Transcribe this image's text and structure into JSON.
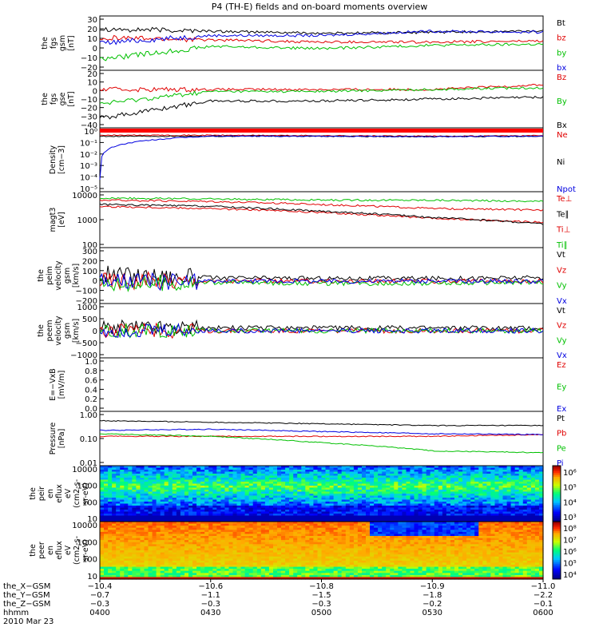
{
  "title": "P4 (TH-E) fields and on-board moments overview",
  "panels": [
    {
      "ylabel": [
        "the",
        "fgs",
        "gsm",
        "[nT]"
      ],
      "ticks": [
        "30",
        "20",
        "10",
        "0",
        "−10",
        "−20"
      ],
      "legend": [
        {
          "t": "Bt",
          "c": "#000000"
        },
        {
          "t": "bz",
          "c": "#e00000"
        },
        {
          "t": "by",
          "c": "#00c000"
        },
        {
          "t": "bx",
          "c": "#0000e0"
        }
      ]
    },
    {
      "ylabel": [
        "the",
        "fgs",
        "gse",
        "[nT]"
      ],
      "ticks": [
        "20",
        "10",
        "0",
        "−10",
        "−20",
        "−30",
        "−40"
      ],
      "legend": [
        {
          "t": "Bz",
          "c": "#e00000"
        },
        {
          "t": "By",
          "c": "#00c000"
        },
        {
          "t": "Bx",
          "c": "#000000"
        }
      ]
    },
    {
      "ylabel": [
        "Density",
        "[cm−3]"
      ],
      "ticks": [
        "10⁰",
        "10⁻¹",
        "10⁻²",
        "10⁻³",
        "10⁻⁴",
        "10⁻⁵"
      ],
      "legend": [
        {
          "t": "Ne",
          "c": "#e00000"
        },
        {
          "t": "Ni",
          "c": "#000000"
        },
        {
          "t": "Npot",
          "c": "#0000e0"
        }
      ]
    },
    {
      "ylabel": [
        "magt3",
        "[eV]"
      ],
      "ticks": [
        "10000",
        "1000",
        "100"
      ],
      "legend": [
        {
          "t": "Te⊥",
          "c": "#e00000"
        },
        {
          "t": "Te∥",
          "c": "#000000"
        },
        {
          "t": "Ti⊥",
          "c": "#e00000"
        },
        {
          "t": "Ti∥",
          "c": "#00c000"
        }
      ]
    },
    {
      "ylabel": [
        "the",
        "peim",
        "velocity",
        "gsm",
        "[km/s]"
      ],
      "ticks": [
        "300",
        "200",
        "100",
        "0",
        "−100",
        "−200"
      ],
      "legend": [
        {
          "t": "Vt",
          "c": "#000000"
        },
        {
          "t": "Vz",
          "c": "#e00000"
        },
        {
          "t": "Vy",
          "c": "#00c000"
        },
        {
          "t": "Vx",
          "c": "#0000e0"
        }
      ]
    },
    {
      "ylabel": [
        "the",
        "peem",
        "velocity",
        "gsm",
        "[km/s]"
      ],
      "ticks": [
        "1000",
        "500",
        "0",
        "−500",
        "−1000"
      ],
      "legend": [
        {
          "t": "Vt",
          "c": "#000000"
        },
        {
          "t": "Vz",
          "c": "#e00000"
        },
        {
          "t": "Vy",
          "c": "#00c000"
        },
        {
          "t": "Vx",
          "c": "#0000e0"
        }
      ]
    },
    {
      "ylabel": [
        "E=−VxB",
        "[mV/m]"
      ],
      "ticks": [
        "1.0",
        "0.8",
        "0.6",
        "0.4",
        "0.2",
        "0.0"
      ],
      "legend": [
        {
          "t": "Ez",
          "c": "#e00000"
        },
        {
          "t": "Ey",
          "c": "#00c000"
        },
        {
          "t": "Ex",
          "c": "#0000e0"
        }
      ]
    },
    {
      "ylabel": [
        "Pressure",
        "[nPa]"
      ],
      "ticks": [
        "1.00",
        "0.10",
        "0.01"
      ],
      "legend": [
        {
          "t": "Pt",
          "c": "#000000"
        },
        {
          "t": "Pb",
          "c": "#e00000"
        },
        {
          "t": "Pe",
          "c": "#00c000"
        },
        {
          "t": "Pi",
          "c": "#0000e0"
        }
      ]
    },
    {
      "ylabel": [
        "the",
        "peir",
        "en",
        "eflux",
        "eV",
        "(cm2-s-",
        "sr-eV)"
      ],
      "ticks": [
        "10000",
        "1000",
        "100",
        "10"
      ],
      "colorbar": [
        "10⁶",
        "10⁵",
        "10⁴",
        "10³"
      ]
    },
    {
      "ylabel": [
        "the",
        "peer",
        "en",
        "eflux",
        "eV",
        "(cm2-s-",
        "sr-eV)"
      ],
      "ticks": [
        "10000",
        "1000",
        "100",
        "10"
      ],
      "colorbar": [
        "10⁸",
        "10⁷",
        "10⁶",
        "10⁵",
        "10⁴"
      ]
    }
  ],
  "xaxis": {
    "row_labels": [
      "the_X−GSM",
      "the_Y−GSM",
      "the_Z−GSM",
      "hhmm",
      "2010 Mar 23"
    ],
    "columns": [
      [
        "−10.4",
        "−0.7",
        "−0.3",
        "0400"
      ],
      [
        "−10.6",
        "−1.1",
        "−0.3",
        "0430"
      ],
      [
        "−10.8",
        "−1.5",
        "−0.3",
        "0500"
      ],
      [
        "−10.9",
        "−1.8",
        "−0.2",
        "0530"
      ],
      [
        "−11.0",
        "−2.2",
        "−0.1",
        "0600"
      ]
    ]
  },
  "chart_data": {
    "type": "line",
    "title": "P4 (TH-E) fields and on-board moments overview",
    "x": [
      "0400",
      "0430",
      "0500",
      "0530",
      "0600"
    ],
    "x_secondary": {
      "the_X-GSM": [
        -10.4,
        -10.6,
        -10.8,
        -10.9,
        -11.0
      ],
      "the_Y-GSM": [
        -0.7,
        -1.1,
        -1.5,
        -1.8,
        -2.2
      ],
      "the_Z-GSM": [
        -0.3,
        -0.3,
        -0.3,
        -0.2,
        -0.1
      ]
    },
    "date": "2010 Mar 23",
    "panels": [
      {
        "ylabel": "the fgs gsm [nT]",
        "ylim": [
          -20,
          30
        ],
        "series": [
          {
            "name": "Bt",
            "values": [
              18,
              16,
              14,
              15,
              16
            ]
          },
          {
            "name": "bz",
            "values": [
              10,
              8,
              6,
              6,
              7
            ]
          },
          {
            "name": "by",
            "values": [
              -10,
              2,
              0,
              3,
              4
            ]
          },
          {
            "name": "bx",
            "values": [
              5,
              12,
              12,
              16,
              15
            ]
          }
        ]
      },
      {
        "ylabel": "the fgs gse [nT]",
        "ylim": [
          -40,
          20
        ],
        "series": [
          {
            "name": "Bz",
            "values": [
              0,
              0,
              0,
              0,
              5
            ]
          },
          {
            "name": "By",
            "values": [
              -15,
              -2,
              -2,
              0,
              2
            ]
          },
          {
            "name": "Bx",
            "values": [
              -30,
              -12,
              -12,
              -10,
              -8
            ]
          }
        ]
      },
      {
        "ylabel": "Density [cm-3]",
        "scale": "log",
        "ylim": [
          1e-05,
          1
        ],
        "series": [
          {
            "name": "Ne",
            "values": [
              0.6,
              0.6,
              0.55,
              0.5,
              0.55
            ]
          },
          {
            "name": "Ni",
            "values": [
              0.5,
              0.5,
              0.5,
              0.45,
              0.5
            ]
          },
          {
            "name": "Npot",
            "values": [
              0.0001,
              0.5,
              0.5,
              0.45,
              0.5
            ]
          }
        ]
      },
      {
        "ylabel": "magt3 [eV]",
        "scale": "log",
        "ylim": [
          100,
          10000
        ],
        "series": [
          {
            "name": "Te⊥",
            "values": [
              3000,
              2500,
              1800,
              1100,
              800
            ]
          },
          {
            "name": "Te∥",
            "values": [
              3500,
              3000,
              2000,
              1200,
              700
            ]
          },
          {
            "name": "Ti⊥",
            "values": [
              5000,
              4500,
              3500,
              2500,
              2200
            ]
          },
          {
            "name": "Ti∥",
            "values": [
              6000,
              5500,
              5000,
              5000,
              4500
            ]
          }
        ]
      },
      {
        "ylabel": "the peim velocity gsm [km/s]",
        "ylim": [
          -200,
          300
        ],
        "series": [
          {
            "name": "Vt",
            "values": [
              60,
              30,
              25,
              25,
              30
            ]
          },
          {
            "name": "Vz",
            "values": [
              10,
              0,
              0,
              0,
              0
            ]
          },
          {
            "name": "Vy",
            "values": [
              -20,
              -10,
              -20,
              -20,
              -10
            ]
          },
          {
            "name": "Vx",
            "values": [
              0,
              0,
              0,
              0,
              0
            ]
          }
        ]
      },
      {
        "ylabel": "the peem velocity gsm [km/s]",
        "ylim": [
          -1000,
          1000
        ],
        "series": [
          {
            "name": "Vt",
            "values": [
              150,
              100,
              100,
              100,
              100
            ]
          },
          {
            "name": "Vz",
            "values": [
              0,
              0,
              0,
              0,
              0
            ]
          },
          {
            "name": "Vy",
            "values": [
              0,
              0,
              0,
              0,
              0
            ]
          },
          {
            "name": "Vx",
            "values": [
              0,
              0,
              0,
              0,
              0
            ]
          }
        ]
      },
      {
        "ylabel": "E=-VxB [mV/m]",
        "ylim": [
          0,
          1
        ],
        "series": []
      },
      {
        "ylabel": "Pressure [nPa]",
        "scale": "log",
        "ylim": [
          0.01,
          1
        ],
        "series": [
          {
            "name": "Pt",
            "values": [
              0.45,
              0.4,
              0.35,
              0.3,
              0.3
            ]
          },
          {
            "name": "Pb",
            "values": [
              0.12,
              0.12,
              0.12,
              0.12,
              0.14
            ]
          },
          {
            "name": "Pe",
            "values": [
              0.15,
              0.12,
              0.07,
              0.035,
              0.03
            ]
          },
          {
            "name": "Pi",
            "values": [
              0.2,
              0.22,
              0.18,
              0.15,
              0.14
            ]
          }
        ]
      }
    ]
  }
}
